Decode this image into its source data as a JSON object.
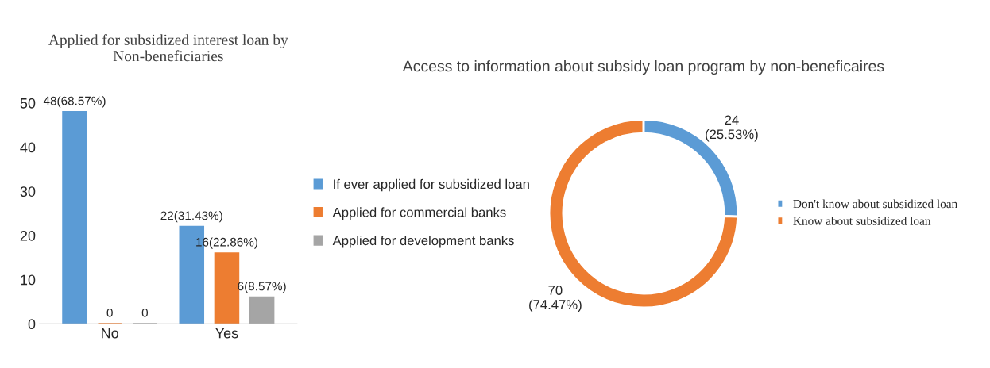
{
  "chart_data": [
    {
      "type": "bar",
      "title": "Applied for subsidized interest loan by Non-beneficiaries",
      "categories": [
        "No",
        "Yes"
      ],
      "ylim": [
        0,
        50
      ],
      "yticks": [
        0,
        10,
        20,
        30,
        40,
        50
      ],
      "grid": false,
      "legend": "right",
      "series": [
        {
          "name": "If ever applied for subsidized loan",
          "color": "#5b9bd5",
          "values": [
            48,
            22
          ],
          "value_labels": [
            "48(68.57%)",
            "22(31.43%)"
          ]
        },
        {
          "name": "Applied for commercial banks",
          "color": "#ed7d31",
          "values": [
            0,
            16
          ],
          "value_labels": [
            "0",
            "16(22.86%)"
          ]
        },
        {
          "name": "Applied for development banks",
          "color": "#a5a5a5",
          "values": [
            0,
            6
          ],
          "value_labels": [
            "0",
            "6(8.57%)"
          ]
        }
      ]
    },
    {
      "type": "donut",
      "title": "Access to information about subsidy loan program by non-beneficaires",
      "categories": [
        "Don't know about subsidized loan",
        "Know about subsidized loan"
      ],
      "values": [
        24,
        70
      ],
      "colors": [
        "#5b9bd5",
        "#ed7d31"
      ],
      "value_labels": [
        "24\n(25.53%)",
        "70\n(74.47%)"
      ],
      "legend": "right"
    }
  ]
}
